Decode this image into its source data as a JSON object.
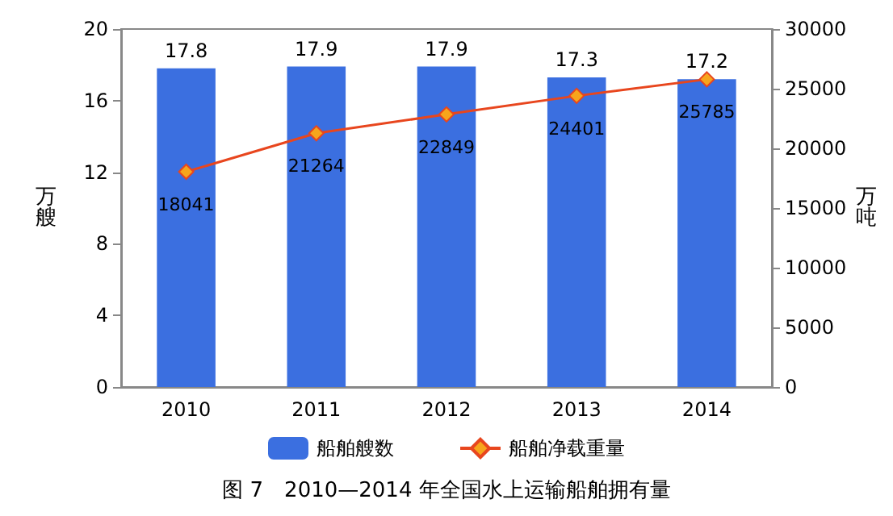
{
  "chart_data": {
    "type": "bar",
    "title": "图 7　2010—2014 年全国水上运输船舶拥有量",
    "ylabel": "万艘",
    "y2label": "万吨",
    "categories": [
      "2010",
      "2011",
      "2012",
      "2013",
      "2014"
    ],
    "series": [
      {
        "name": "船舶艘数",
        "color": "#3b6fe0",
        "values": [
          17.8,
          17.9,
          17.9,
          17.3,
          17.2
        ]
      },
      {
        "name": "船舶净载重量",
        "type": "line",
        "axis": "y2",
        "color": "#e8461e",
        "values": [
          18041,
          21264,
          22849,
          24401,
          25785
        ]
      }
    ],
    "ylim": [
      0,
      20
    ],
    "yticks": [
      0,
      4,
      8,
      12,
      16,
      20
    ],
    "y2lim": [
      0,
      30000
    ],
    "y2ticks": [
      0,
      5000,
      10000,
      15000,
      20000,
      25000,
      30000
    ],
    "data_labels": true,
    "legend": "bottom",
    "marker": "diamond",
    "grid": false
  }
}
